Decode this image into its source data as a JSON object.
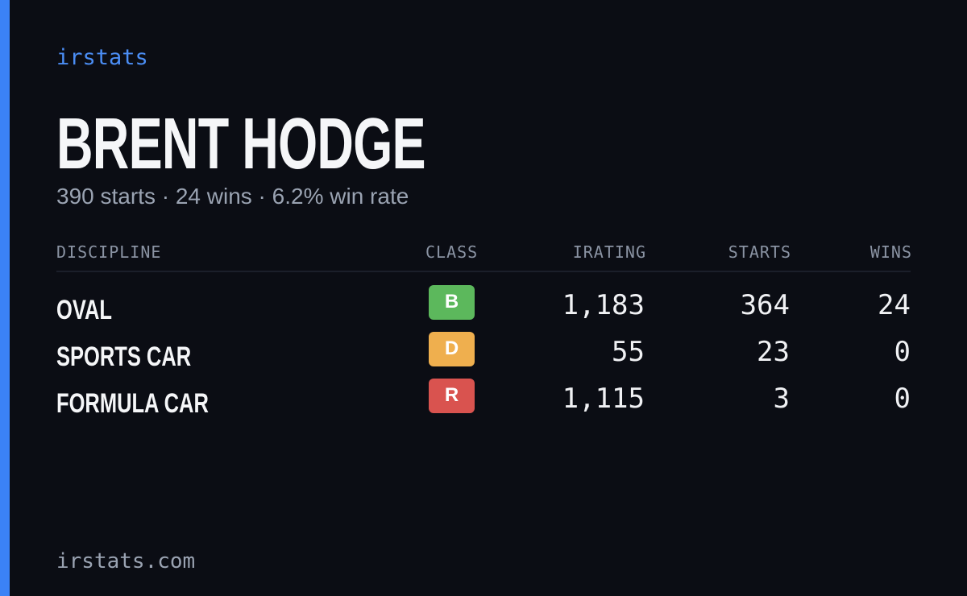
{
  "header": {
    "brand": "irstats",
    "title": "BRENT HODGE",
    "subtitle": "390 starts · 24 wins · 6.2% win rate"
  },
  "table": {
    "columns": [
      "DISCIPLINE",
      "CLASS",
      "IRATING",
      "STARTS",
      "WINS"
    ],
    "rows": [
      [
        "OVAL",
        "B",
        "1,183",
        "364",
        "24"
      ],
      [
        "SPORTS CAR",
        "D",
        "55",
        "23",
        "0"
      ],
      [
        "FORMULA CAR",
        "R",
        "1,115",
        "3",
        "0"
      ]
    ],
    "class_colors": [
      "#5cb85c",
      "#efaf4e",
      "#d9534f"
    ]
  },
  "footer": {
    "site": "irstats.com"
  }
}
